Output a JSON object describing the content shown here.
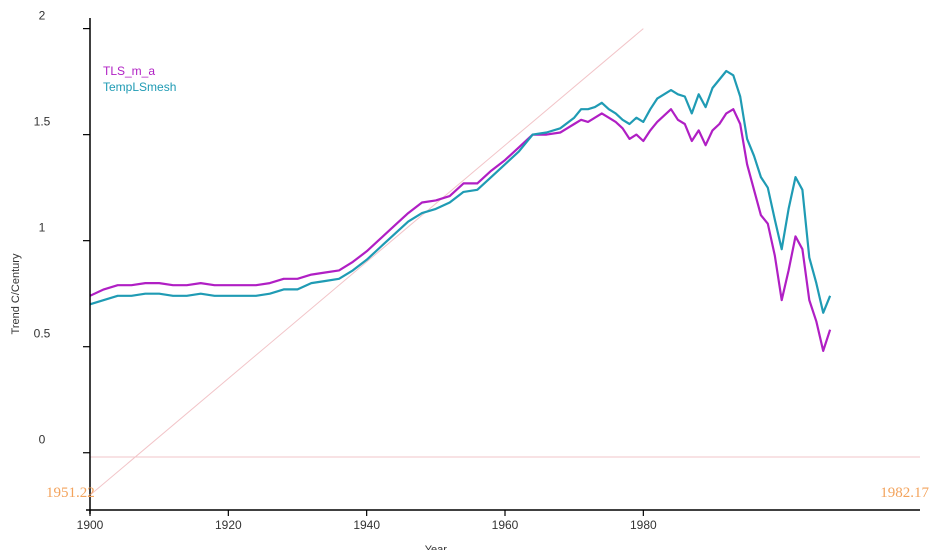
{
  "chart_data": {
    "type": "line",
    "xlabel": "Year",
    "ylabel": "Trend C/Century",
    "xlim": [
      1900,
      2020
    ],
    "ylim": [
      -0.27,
      2.05
    ],
    "x_ticks": [
      "1900",
      "1920",
      "1940",
      "1960",
      "1980"
    ],
    "y_ticks": [
      "0",
      "0.5",
      "1",
      "1.5",
      "2"
    ],
    "grid": false,
    "legend_position": "top-left",
    "corner_labels": {
      "left": "1951.22",
      "right": "1982.17"
    },
    "reference_lines": [
      {
        "name": "diagonal",
        "color": "#f2c4c8",
        "x": [
          1900,
          1980
        ],
        "y": [
          -0.2,
          2.0
        ]
      },
      {
        "name": "zero",
        "color": "#f2c4c8",
        "x": [
          1900,
          2020
        ],
        "y": [
          -0.02,
          -0.02
        ]
      }
    ],
    "series": [
      {
        "name": "TLS_m_a",
        "color": "#b01fc4",
        "x": [
          1900,
          1902,
          1904,
          1906,
          1908,
          1910,
          1912,
          1914,
          1916,
          1918,
          1920,
          1922,
          1924,
          1926,
          1928,
          1930,
          1932,
          1934,
          1936,
          1938,
          1940,
          1942,
          1944,
          1946,
          1948,
          1950,
          1952,
          1954,
          1956,
          1958,
          1960,
          1962,
          1964,
          1966,
          1968,
          1970,
          1971,
          1972,
          1973,
          1974,
          1975,
          1976,
          1977,
          1978,
          1979,
          1980,
          1981,
          1982,
          1983,
          1984,
          1985,
          1986,
          1987,
          1988,
          1989,
          1990,
          1991,
          1992,
          1993,
          1994,
          1995,
          1996,
          1997,
          1998,
          1999,
          2000,
          2001,
          2002,
          2003,
          2004,
          2005,
          2006,
          2007
        ],
        "y": [
          0.74,
          0.77,
          0.79,
          0.79,
          0.8,
          0.8,
          0.79,
          0.79,
          0.8,
          0.79,
          0.79,
          0.79,
          0.79,
          0.8,
          0.82,
          0.82,
          0.84,
          0.85,
          0.86,
          0.9,
          0.95,
          1.01,
          1.07,
          1.13,
          1.18,
          1.19,
          1.21,
          1.27,
          1.27,
          1.33,
          1.38,
          1.44,
          1.5,
          1.5,
          1.51,
          1.55,
          1.57,
          1.56,
          1.58,
          1.6,
          1.58,
          1.56,
          1.53,
          1.48,
          1.5,
          1.47,
          1.52,
          1.56,
          1.59,
          1.62,
          1.57,
          1.55,
          1.47,
          1.52,
          1.45,
          1.52,
          1.55,
          1.6,
          1.62,
          1.55,
          1.36,
          1.24,
          1.12,
          1.08,
          0.93,
          0.72,
          0.86,
          1.02,
          0.96,
          0.72,
          0.62,
          0.48,
          0.58
        ]
      },
      {
        "name": "TempLSmesh",
        "color": "#1f9bb4",
        "x": [
          1900,
          1902,
          1904,
          1906,
          1908,
          1910,
          1912,
          1914,
          1916,
          1918,
          1920,
          1922,
          1924,
          1926,
          1928,
          1930,
          1932,
          1934,
          1936,
          1938,
          1940,
          1942,
          1944,
          1946,
          1948,
          1950,
          1952,
          1954,
          1956,
          1958,
          1960,
          1962,
          1964,
          1966,
          1968,
          1970,
          1971,
          1972,
          1973,
          1974,
          1975,
          1976,
          1977,
          1978,
          1979,
          1980,
          1981,
          1982,
          1983,
          1984,
          1985,
          1986,
          1987,
          1988,
          1989,
          1990,
          1991,
          1992,
          1993,
          1994,
          1995,
          1996,
          1997,
          1998,
          1999,
          2000,
          2001,
          2002,
          2003,
          2004,
          2005,
          2006,
          2007
        ],
        "y": [
          0.7,
          0.72,
          0.74,
          0.74,
          0.75,
          0.75,
          0.74,
          0.74,
          0.75,
          0.74,
          0.74,
          0.74,
          0.74,
          0.75,
          0.77,
          0.77,
          0.8,
          0.81,
          0.82,
          0.86,
          0.91,
          0.97,
          1.03,
          1.09,
          1.13,
          1.15,
          1.18,
          1.23,
          1.24,
          1.3,
          1.36,
          1.42,
          1.5,
          1.51,
          1.53,
          1.58,
          1.62,
          1.62,
          1.63,
          1.65,
          1.62,
          1.6,
          1.57,
          1.55,
          1.58,
          1.56,
          1.62,
          1.67,
          1.69,
          1.71,
          1.69,
          1.68,
          1.6,
          1.69,
          1.63,
          1.72,
          1.76,
          1.8,
          1.78,
          1.68,
          1.48,
          1.4,
          1.3,
          1.25,
          1.1,
          0.96,
          1.15,
          1.3,
          1.24,
          0.92,
          0.8,
          0.66,
          0.74
        ]
      }
    ]
  }
}
